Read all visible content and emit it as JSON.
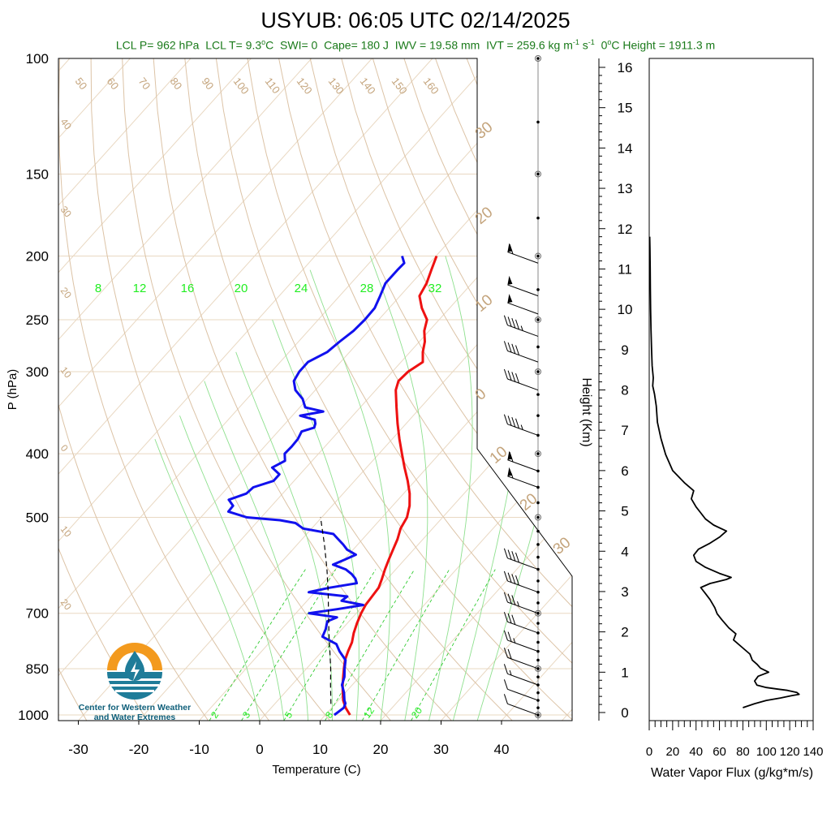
{
  "header": {
    "title": "USYUB: 06:05 UTC 02/14/2025",
    "subtitle_parts": {
      "lcl_p": "LCL P= 962 hPa",
      "lcl_t_pre": "LCL T= 9.3",
      "lcl_t_unit": "C",
      "swi": "SWI= 0",
      "cape": "Cape= 180 J",
      "iwv": "IWV = 19.58 mm",
      "ivt_pre": "IVT = 259.6 kg m",
      "ivt_exp1": "-1",
      "ivt_mid": " s",
      "ivt_exp2": "-1",
      "zero_height_pre": "0",
      "zero_height_post": "C Height = 1911.3 m"
    }
  },
  "logo": {
    "line1": "Center for Western Weather",
    "line2": "and Water Extremes"
  },
  "colors": {
    "temperature": "#ee1111",
    "dewpoint": "#1111ee",
    "parcel": "#000000",
    "isotherm": "#e9d8c2",
    "dry_adiabat": "#dcc3a6",
    "moist_adiabat": "#8ee08e",
    "mixing_ratio": "#33cc33",
    "isotherm_label": "#c4a47c",
    "moist_label": "#22ee22"
  },
  "chart_data": [
    {
      "type": "line",
      "subtype": "skew-T log-P diagram",
      "xlabel": "Temperature (C)",
      "ylabel": "P (hPa)",
      "y_scale": "log",
      "xlim": [
        -34,
        52
      ],
      "ylim": [
        1020,
        100
      ],
      "x_ticks": [
        -30,
        -20,
        -10,
        0,
        10,
        20,
        30,
        40
      ],
      "y_ticks": [
        100,
        150,
        200,
        250,
        300,
        400,
        500,
        700,
        850,
        1000
      ],
      "height_axis": {
        "label": "Height (Km)",
        "ticks": [
          0,
          1,
          2,
          3,
          4,
          5,
          6,
          7,
          8,
          9,
          10,
          11,
          12,
          13,
          14,
          15,
          16
        ]
      },
      "isotherm_labels_top": [
        "50",
        "60",
        "70",
        "80",
        "90",
        "100",
        "110",
        "120",
        "130",
        "140",
        "150",
        "160"
      ],
      "isotherm_labels_left": [
        "40",
        "30",
        "20",
        "10",
        "0",
        "10",
        "20"
      ],
      "isotherm_labels_right": [
        "30",
        "20",
        "10",
        "0",
        "10",
        "20",
        "30"
      ],
      "moist_adiabat_labels": [
        "8",
        "12",
        "16",
        "20",
        "24",
        "28",
        "32"
      ],
      "mixing_ratio_labels": [
        "2",
        "3",
        "5",
        "8",
        "12",
        "20"
      ],
      "series": [
        {
          "name": "temperature",
          "p": [
            1000,
            975,
            950,
            925,
            900,
            875,
            850,
            825,
            800,
            775,
            750,
            725,
            700,
            680,
            660,
            640,
            620,
            600,
            580,
            560,
            540,
            520,
            500,
            480,
            460,
            440,
            420,
            400,
            380,
            360,
            340,
            320,
            310,
            300,
            290,
            280,
            270,
            260,
            250,
            240,
            230,
            220,
            210,
            200
          ],
          "t": [
            14.1,
            12.3,
            10.8,
            9.6,
            8.4,
            7.3,
            6.2,
            5.1,
            4.3,
            3.6,
            2.5,
            1.6,
            0.8,
            0.3,
            0.1,
            -0.1,
            -0.9,
            -1.8,
            -2.6,
            -3.4,
            -4.2,
            -5.3,
            -5.9,
            -7.2,
            -9.0,
            -11.2,
            -13.7,
            -16.2,
            -18.8,
            -21.4,
            -24.0,
            -26.7,
            -27.6,
            -27.4,
            -26.4,
            -27.9,
            -29.1,
            -30.8,
            -32.0,
            -34.6,
            -36.8,
            -37.5,
            -38.7,
            -39.9
          ]
        },
        {
          "name": "dewpoint",
          "p": [
            1000,
            990,
            975,
            960,
            950,
            925,
            900,
            875,
            850,
            825,
            800,
            780,
            760,
            740,
            720,
            710,
            700,
            690,
            680,
            670,
            660,
            650,
            640,
            630,
            620,
            610,
            600,
            590,
            580,
            570,
            560,
            550,
            540,
            530,
            520,
            510,
            505,
            500,
            490,
            480,
            470,
            460,
            450,
            440,
            430,
            420,
            410,
            400,
            390,
            380,
            370,
            365,
            360,
            355,
            350,
            345,
            340,
            330,
            320,
            310,
            300,
            290,
            280,
            270,
            260,
            250,
            240,
            230,
            220,
            210,
            205,
            200
          ],
          "t": [
            11.5,
            11.7,
            12.0,
            11.6,
            11.0,
            9.8,
            8.3,
            7.5,
            6.3,
            5.2,
            2.9,
            1.3,
            -2.1,
            -2.7,
            -3.6,
            -2.6,
            -7.8,
            -3.8,
            -0.1,
            -4.3,
            -4.0,
            -11.0,
            -8.2,
            -4.4,
            -5.3,
            -6.6,
            -8.3,
            -11.1,
            -9.9,
            -8.8,
            -11.0,
            -12.4,
            -14.0,
            -15.6,
            -21.4,
            -23.5,
            -26.5,
            -32.4,
            -36.3,
            -36.4,
            -38.0,
            -36.0,
            -35.8,
            -33.4,
            -33.4,
            -35.6,
            -34.5,
            -35.6,
            -35.5,
            -35.6,
            -36.1,
            -34.6,
            -35.0,
            -35.7,
            -38.7,
            -35.5,
            -39.1,
            -40.8,
            -43.3,
            -44.9,
            -45.4,
            -45.4,
            -43.7,
            -43.2,
            -42.5,
            -42.3,
            -42.4,
            -43.3,
            -44.3,
            -44.3,
            -44.2,
            -45.6
          ]
        },
        {
          "name": "parcel",
          "p": [
            962,
            900,
            850,
            800,
            750,
            700,
            650,
            600,
            550,
            500
          ],
          "t": [
            9.3,
            6.4,
            4.0,
            1.3,
            -1.6,
            -4.6,
            -7.8,
            -11.4,
            -15.5,
            -20.2
          ]
        }
      ],
      "wind_barbs": [
        {
          "p": 1000,
          "speed_kt": 10
        },
        {
          "p": 950,
          "speed_kt": 10
        },
        {
          "p": 900,
          "speed_kt": 15
        },
        {
          "p": 850,
          "speed_kt": 20
        },
        {
          "p": 800,
          "speed_kt": 25
        },
        {
          "p": 750,
          "speed_kt": 30
        },
        {
          "p": 700,
          "speed_kt": 35
        },
        {
          "p": 650,
          "speed_kt": 40
        },
        {
          "p": 600,
          "speed_kt": 40
        },
        {
          "p": 450,
          "speed_kt": 55
        },
        {
          "p": 425,
          "speed_kt": 60
        },
        {
          "p": 375,
          "speed_kt": 45
        },
        {
          "p": 320,
          "speed_kt": 40
        },
        {
          "p": 290,
          "speed_kt": 40
        },
        {
          "p": 265,
          "speed_kt": 45
        },
        {
          "p": 245,
          "speed_kt": 50
        },
        {
          "p": 230,
          "speed_kt": 50
        },
        {
          "p": 205,
          "speed_kt": 60
        }
      ]
    },
    {
      "type": "line",
      "xlabel": "Water Vapor Flux (g/kg*m/s)",
      "ylabel": "Height (Km)",
      "xlim": [
        0,
        140
      ],
      "ylim": [
        -0.2,
        16.3
      ],
      "x_ticks": [
        0,
        20,
        40,
        60,
        80,
        100,
        120,
        140
      ],
      "series": [
        {
          "name": "flux",
          "height_km": [
            0.12,
            0.22,
            0.3,
            0.36,
            0.42,
            0.45,
            0.5,
            0.55,
            0.58,
            0.62,
            0.68,
            0.78,
            0.9,
            1.0,
            1.1,
            1.2,
            1.3,
            1.45,
            1.6,
            1.8,
            1.95,
            2.1,
            2.3,
            2.45,
            2.6,
            2.8,
            2.95,
            3.1,
            3.2,
            3.3,
            3.35,
            3.45,
            3.6,
            3.75,
            3.9,
            4.05,
            4.2,
            4.35,
            4.5,
            4.65,
            4.8,
            4.95,
            5.1,
            5.3,
            5.5,
            5.7,
            6.0,
            6.4,
            6.8,
            7.2,
            7.6,
            7.9,
            8.1,
            8.3,
            8.6,
            9.0,
            9.5,
            10.0,
            10.5,
            11.0,
            11.5,
            11.8
          ],
          "flux": [
            80,
            90,
            100,
            112,
            122,
            128,
            126,
            118,
            110,
            100,
            92,
            90,
            93,
            102,
            95,
            92,
            88,
            86,
            80,
            72,
            74,
            68,
            62,
            58,
            56,
            52,
            48,
            44,
            52,
            66,
            70,
            60,
            48,
            40,
            38,
            42,
            52,
            60,
            66,
            55,
            48,
            44,
            40,
            36,
            38,
            30,
            20,
            14,
            10,
            7,
            6,
            4.5,
            3,
            3.5,
            2.5,
            2,
            1.5,
            1.2,
            1.0,
            0.8,
            0.6,
            0.4
          ]
        }
      ]
    }
  ]
}
